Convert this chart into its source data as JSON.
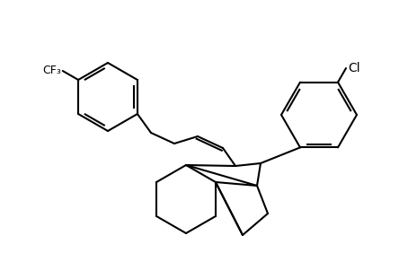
{
  "background_color": "#ffffff",
  "line_color": "#000000",
  "bond_color_S": "#c8a000",
  "bond_color_N": "#8b4513",
  "atom_label_color": "#000000",
  "atom_label_S": "#c8a000",
  "atom_label_N": "#8b4513",
  "figsize": [
    4.44,
    3.11
  ],
  "dpi": 100
}
